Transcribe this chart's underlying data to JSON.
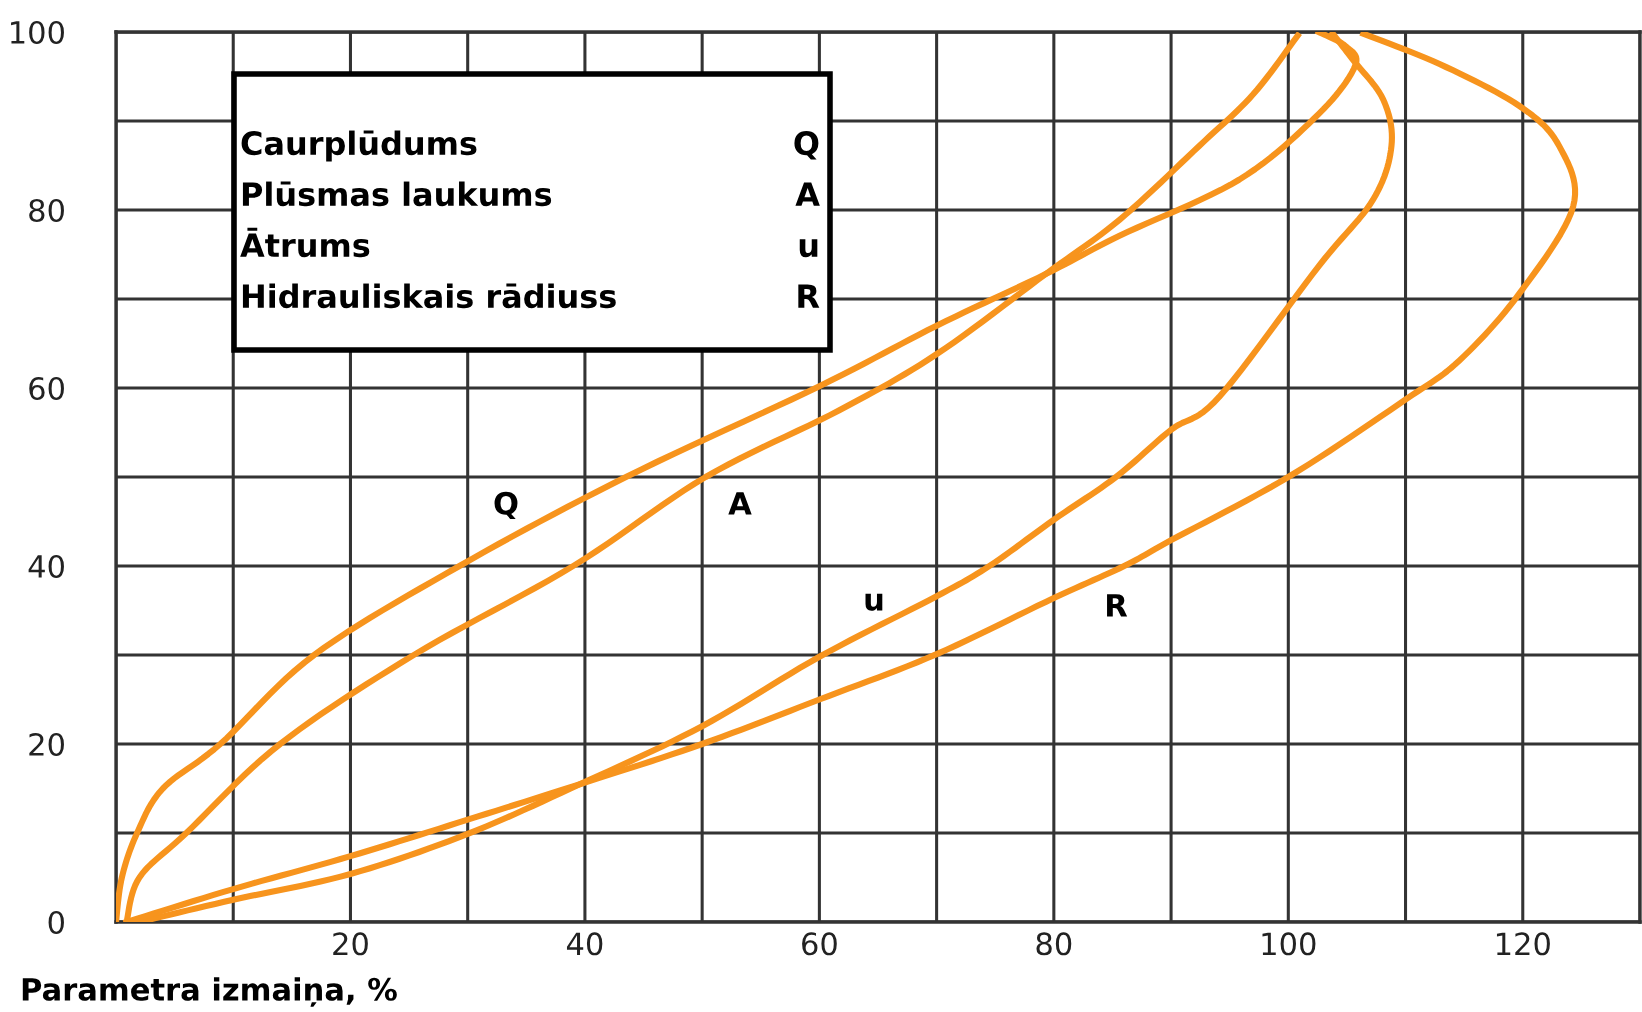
{
  "chart_data": {
    "type": "line",
    "xlabel": "Parametra izmaiņa, %",
    "series": [
      {
        "name": "Q",
        "color": "#f7941d",
        "x": [
          0,
          0.5,
          1.8,
          4,
          8.9,
          16.9,
          29.3,
          43.5,
          60,
          70,
          79.3,
          85.6,
          95.8,
          102.6,
          105.7,
          104.9,
          102.6
        ],
        "values": [
          0,
          5,
          10,
          15,
          20,
          30,
          40,
          50,
          60.2,
          67,
          72.8,
          77.1,
          83.4,
          90.8,
          96.2,
          98.4,
          100
        ]
      },
      {
        "name": "A",
        "color": "#f7941d",
        "x": [
          0.9,
          2,
          6,
          14,
          25.4,
          39,
          50.3,
          61.7,
          70,
          79.3,
          85.6,
          92.4,
          97,
          100.8
        ],
        "values": [
          0,
          5,
          10,
          20,
          30,
          40,
          50,
          57.5,
          63.8,
          72.8,
          78.9,
          87.2,
          93,
          99.6
        ]
      },
      {
        "name": "u",
        "color": "#f7941d",
        "x": [
          2,
          10,
          20,
          30,
          39.6,
          50,
          60,
          70,
          74.5,
          80,
          85.3,
          90,
          94.1,
          102.6,
          107.2,
          108.8,
          108.1,
          105.5,
          103.8
        ],
        "values": [
          0,
          2.5,
          5.4,
          9.9,
          15.5,
          22,
          29.8,
          36.6,
          40,
          45.2,
          50,
          55.3,
          59,
          73.7,
          81.1,
          87.2,
          92.4,
          96.9,
          99.8
        ]
      },
      {
        "name": "R",
        "color": "#f7941d",
        "x": [
          0.9,
          10,
          20,
          30,
          39.6,
          50,
          60,
          70,
          80,
          86,
          90,
          100,
          110,
          114.6,
          119.7,
          124.3,
          123.1,
          119.7,
          112.9,
          106.4
        ],
        "values": [
          0,
          3.7,
          7.4,
          11.5,
          15.5,
          20,
          25,
          30.1,
          36.4,
          40,
          42.9,
          50,
          58.7,
          63.1,
          70.6,
          80.4,
          87.2,
          91.7,
          96.4,
          99.8
        ]
      }
    ],
    "annotations": [
      "Caurplūdums",
      "Plūsmas laukums",
      "Ātrums",
      "Hidrauliskais rādiuss",
      "Q",
      "A",
      "u",
      "R"
    ],
    "xlim": [
      0,
      130
    ],
    "ylim": [
      0,
      100
    ],
    "xticks": [
      {
        "value": 0,
        "label": null
      },
      {
        "value": 10,
        "label": null
      },
      20,
      {
        "value": 30,
        "label": null
      },
      40,
      {
        "value": 50,
        "label": null
      },
      60,
      {
        "value": 70,
        "label": null
      },
      80,
      {
        "value": 90,
        "label": null
      },
      100,
      {
        "value": 110,
        "label": null
      },
      120,
      {
        "value": 130,
        "label": null
      }
    ],
    "yticks": [
      0,
      {
        "value": 10,
        "label": null
      },
      20,
      {
        "value": 30,
        "label": null
      },
      40,
      {
        "value": 50,
        "label": null
      },
      60,
      {
        "value": 70,
        "label": null
      },
      80,
      {
        "value": 90,
        "label": null
      },
      100
    ],
    "grid": true,
    "legend": false,
    "line_style": "solid",
    "marker": "none"
  }
}
